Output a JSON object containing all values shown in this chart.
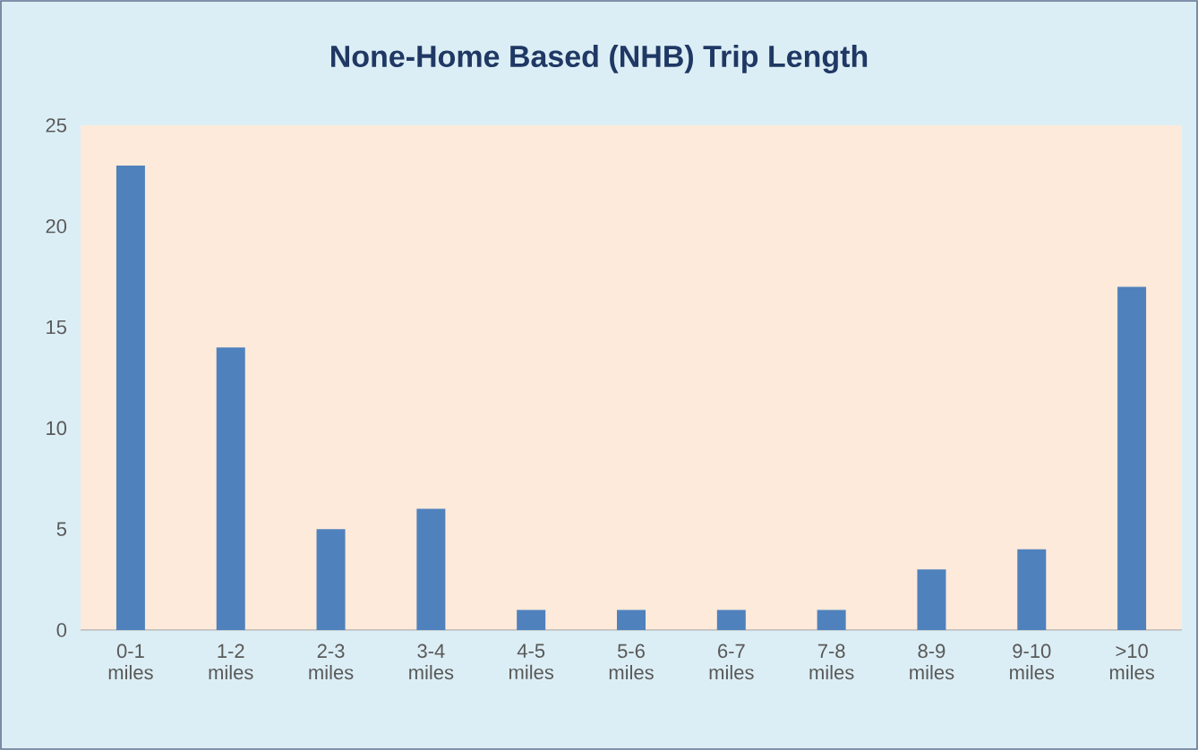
{
  "chart_data": {
    "type": "bar",
    "title": "None-Home Based (NHB) Trip Length",
    "categories": [
      "0-1 miles",
      "1-2 miles",
      "2-3 miles",
      "3-4 miles",
      "4-5 miles",
      "5-6 miles",
      "6-7 miles",
      "7-8 miles",
      "8-9 miles",
      "9-10 miles",
      ">10 miles"
    ],
    "values": [
      23,
      14,
      5,
      6,
      1,
      1,
      1,
      1,
      3,
      4,
      17
    ],
    "color": "#4f81bd",
    "ylim": [
      0,
      25
    ],
    "yticks": [
      0,
      5,
      10,
      15,
      20,
      25
    ],
    "grid": false
  }
}
